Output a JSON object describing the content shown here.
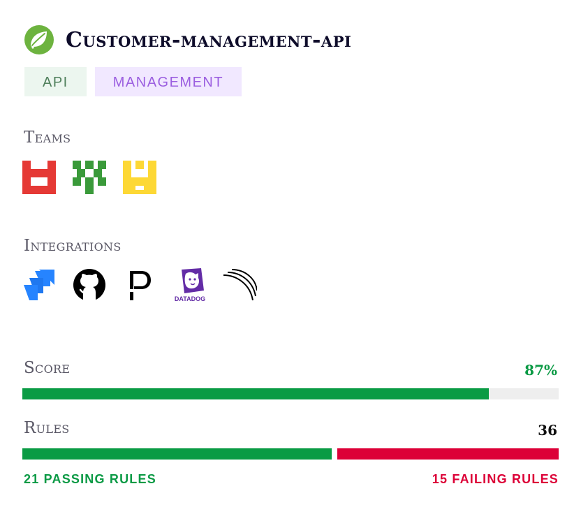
{
  "project": {
    "title": "Customer-management-api",
    "logo_icon": "spring-leaf-icon",
    "logo_color": "#6db33f"
  },
  "tags": [
    {
      "label": "API",
      "bg": "#ecf6ef",
      "color": "#4f7f5b"
    },
    {
      "label": "MANAGEMENT",
      "bg": "#f1e8ff",
      "color": "#9b5ee0"
    }
  ],
  "teams": {
    "label": "Teams",
    "items": [
      {
        "icon": "team-red-identicon",
        "color": "#e53935"
      },
      {
        "icon": "team-green-identicon",
        "color": "#3a9a3a"
      },
      {
        "icon": "team-yellow-identicon",
        "color": "#fdd835"
      }
    ]
  },
  "integrations": {
    "label": "Integrations",
    "items": [
      {
        "icon": "jira-icon",
        "color": "#2684ff"
      },
      {
        "icon": "github-icon",
        "color": "#000000"
      },
      {
        "icon": "pagerduty-icon",
        "color": "#000000"
      },
      {
        "icon": "datadog-icon",
        "color": "#632ca6",
        "text": "DATADOG"
      },
      {
        "icon": "signal-arcs-icon",
        "color": "#000000"
      }
    ]
  },
  "score": {
    "label": "Score",
    "value_text": "87%",
    "value": 0.87,
    "color": "#0a9b44"
  },
  "rules": {
    "label": "Rules",
    "total_text": "36",
    "passing": 21,
    "failing": 15,
    "passing_label": "21 PASSING RULES",
    "failing_label": "15 FAILING RULES",
    "passing_color": "#0a9b44",
    "failing_color": "#dc0037"
  }
}
